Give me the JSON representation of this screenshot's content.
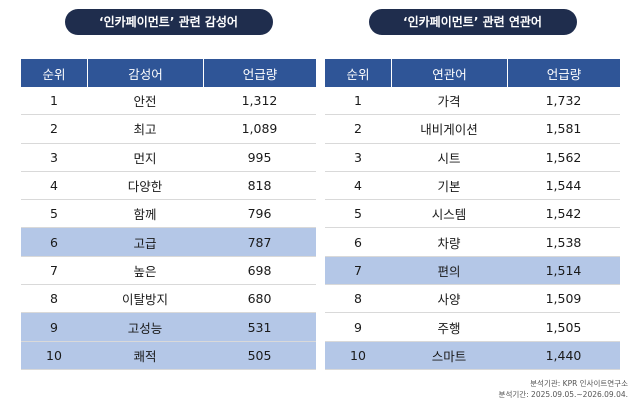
{
  "left": {
    "title": "‘인카페이먼트’ 관련 감성어",
    "headers": [
      "순위",
      "감성어",
      "언급량"
    ],
    "rows": [
      {
        "rank": "1",
        "word": "안전",
        "count": "1,312",
        "highlight": false
      },
      {
        "rank": "2",
        "word": "최고",
        "count": "1,089",
        "highlight": false
      },
      {
        "rank": "3",
        "word": "먼지",
        "count": "995",
        "highlight": false
      },
      {
        "rank": "4",
        "word": "다양한",
        "count": "818",
        "highlight": false
      },
      {
        "rank": "5",
        "word": "함께",
        "count": "796",
        "highlight": false
      },
      {
        "rank": "6",
        "word": "고급",
        "count": "787",
        "highlight": true
      },
      {
        "rank": "7",
        "word": "높은",
        "count": "698",
        "highlight": false
      },
      {
        "rank": "8",
        "word": "이탈방지",
        "count": "680",
        "highlight": false
      },
      {
        "rank": "9",
        "word": "고성능",
        "count": "531",
        "highlight": true
      },
      {
        "rank": "10",
        "word": "쾌적",
        "count": "505",
        "highlight": true
      }
    ]
  },
  "right": {
    "title": "‘인카페이먼트’ 관련 연관어",
    "headers": [
      "순위",
      "연관어",
      "언급량"
    ],
    "rows": [
      {
        "rank": "1",
        "word": "가격",
        "count": "1,732",
        "highlight": false
      },
      {
        "rank": "2",
        "word": "내비게이션",
        "count": "1,581",
        "highlight": false
      },
      {
        "rank": "3",
        "word": "시트",
        "count": "1,562",
        "highlight": false
      },
      {
        "rank": "4",
        "word": "기본",
        "count": "1,544",
        "highlight": false
      },
      {
        "rank": "5",
        "word": "시스템",
        "count": "1,542",
        "highlight": false
      },
      {
        "rank": "6",
        "word": "차량",
        "count": "1,538",
        "highlight": false
      },
      {
        "rank": "7",
        "word": "편의",
        "count": "1,514",
        "highlight": true
      },
      {
        "rank": "8",
        "word": "사양",
        "count": "1,509",
        "highlight": false
      },
      {
        "rank": "9",
        "word": "주행",
        "count": "1,505",
        "highlight": false
      },
      {
        "rank": "10",
        "word": "스마트",
        "count": "1,440",
        "highlight": true
      }
    ]
  },
  "footer": {
    "line1": "분석기관: KPR 인사이트연구소",
    "line2": "분석기간: 2025.09.05.~2026.09.04."
  }
}
